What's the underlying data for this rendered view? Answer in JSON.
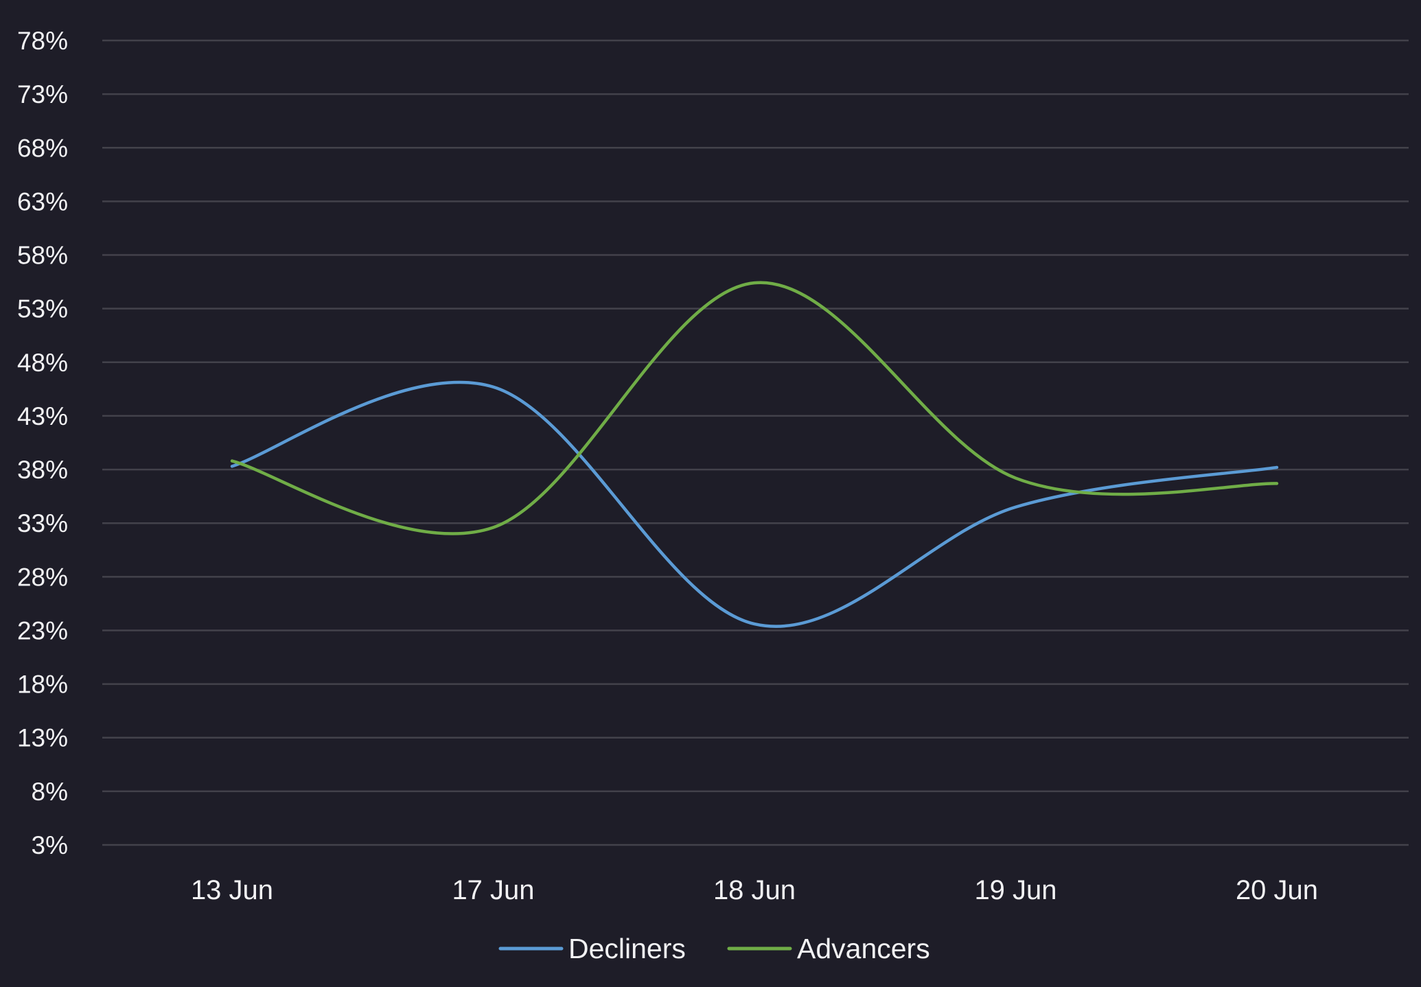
{
  "chart_data": {
    "type": "line",
    "title": "",
    "xlabel": "",
    "ylabel": "",
    "categories": [
      "13 Jun",
      "17 Jun",
      "18 Jun",
      "19 Jun",
      "20 Jun"
    ],
    "y_ticks": [
      "78%",
      "73%",
      "68%",
      "63%",
      "58%",
      "53%",
      "48%",
      "43%",
      "38%",
      "33%",
      "28%",
      "23%",
      "18%",
      "13%",
      "8%",
      "3%"
    ],
    "ylim": [
      3,
      78
    ],
    "grid": true,
    "smooth": true,
    "legend_position": "bottom-center",
    "series": [
      {
        "name": "Decliners",
        "color": "#5b9bd5",
        "values": [
          38.3,
          45.7,
          23.6,
          34.5,
          38.2
        ]
      },
      {
        "name": "Advancers",
        "color": "#70ad47",
        "values": [
          38.8,
          32.6,
          55.4,
          37.2,
          36.7
        ]
      }
    ],
    "colors": {
      "background": "#1e1d28",
      "grid": "#43424b",
      "text": "#f2f2f4"
    }
  }
}
